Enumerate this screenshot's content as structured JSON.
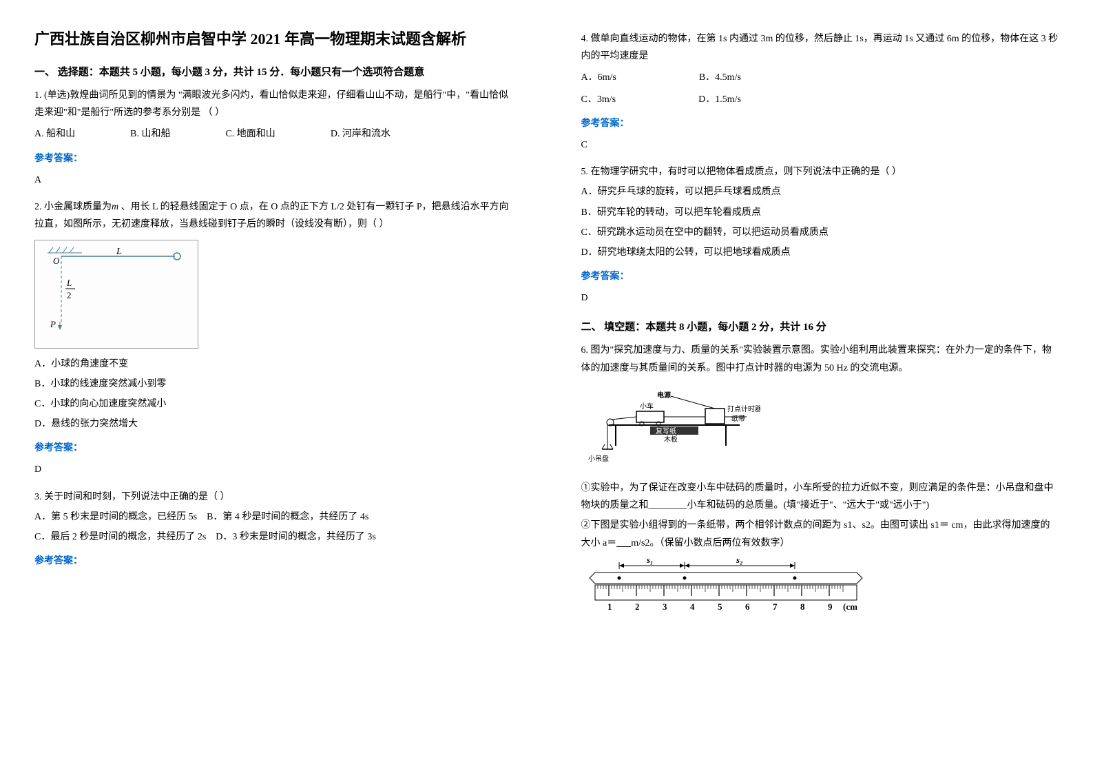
{
  "title": "广西壮族自治区柳州市启智中学 2021 年高一物理期末试题含解析",
  "section1_heading": "一、 选择题：本题共 5 小题，每小题 3 分，共计 15 分．每小题只有一个选项符合题意",
  "q1": {
    "stem": "1. (单选)敦煌曲词所见到的情景为 \"满眼波光多闪灼，看山恰似走来迎，仔细看山山不动，是船行\"中，\"看山恰似走来迎\"和\"是船行\"所选的参考系分别是 （           ）",
    "optA": "A.   船和山",
    "optB": "B. 山和船",
    "optC": "C. 地面和山",
    "optD": "D. 河岸和流水",
    "answer_label": "参考答案：",
    "answer": "A"
  },
  "q2": {
    "stem1": "2. 小金属球质量为",
    "stem2": " 、用长 L 的轻悬线固定于 O 点，在 O 点的正下方 L/2 处钉有一颗钉子 P，把悬线沿水平方向拉直，如图所示，无初速度释放，当悬线碰到钉子后的瞬时（设线没有断），则（  ）",
    "optA": "A．小球的角速度不变",
    "optB": "B．小球的线速度突然减小到零",
    "optC": "C．小球的向心加速度突然减小",
    "optD": "D．悬线的张力突然增大",
    "answer_label": "参考答案：",
    "answer": "D",
    "fig": {
      "L_label": "L",
      "Lhalf_label": "L/2",
      "O_label": "O",
      "P_label": "P",
      "line_color": "#4a7a9a",
      "border_color": "#999999"
    }
  },
  "q3": {
    "stem": "3. 关于时间和时刻，下列说法中正确的是（    ）",
    "optA": "A．第 5 秒末是时间的概念，已经历 5s",
    "optB": "B．第 4 秒是时间的概念，共经历了 4s",
    "optC": "C．最后 2 秒是时间的概念，共经历了 2s",
    "optD": "D．3 秒末是时间的概念，共经历了 3s",
    "answer_label": "参考答案："
  },
  "q4": {
    "stem": "4. 做单向直线运动的物体，在第 1s 内通过 3m 的位移，然后静止 1s，再运动 1s 又通过 6m 的位移，物体在这 3 秒内的平均速度是",
    "optA": "A．6m/s",
    "optB": "B．4.5m/s",
    "optC": "C．3m/s",
    "optD": "D．1.5m/s",
    "answer_label": "参考答案：",
    "answer": "C"
  },
  "q5": {
    "stem": "5. 在物理学研究中，有时可以把物体看成质点，则下列说法中正确的是（    ）",
    "optA": "A．研究乒乓球的旋转，可以把乒乓球看成质点",
    "optB": "B．研究车轮的转动，可以把车轮看成质点",
    "optC": "C．研究跳水运动员在空中的翻转，可以把运动员看成质点",
    "optD": "D．研究地球绕太阳的公转，可以把地球看成质点",
    "answer_label": "参考答案：",
    "answer": "D"
  },
  "section2_heading": "二、 填空题：本题共 8 小题，每小题 2 分，共计 16 分",
  "q6": {
    "stem": "6. 图为\"探究加速度与力、质量的关系\"实验装置示意图。实验小组利用此装置来探究：在外力一定的条件下，物体的加速度与其质量间的关系。图中打点计时器的电源为 50 Hz 的交流电源。",
    "sub1": "①实验中，为了保证在改变小车中砝码的质量时，小车所受的拉力近似不变，则应满足的条件是：小吊盘和盘中物块的质量之和________小车和砝码的总质量。(填\"接近于\"、\"远大于\"或\"远小于\")",
    "sub2_a": "②下图是实验小组得到的一条纸带，两个相邻计数点的间距为 s1、s2。由图可读出 s1＝        cm，由此求得加速度的大小 a＝",
    "sub2_b": "m/s2。（保留小数点后两位有效数字）",
    "fig": {
      "labels": {
        "dianyuan": "电源",
        "xiaoche": "小车",
        "dadian": "打点计时器",
        "zhidai": "纸带",
        "muban": "木板",
        "fuxieban": "复写纸",
        "xiaodiao": "小吊盘"
      },
      "line_color": "#000000"
    },
    "ruler": {
      "s1_label": "s₁",
      "s2_label": "s₂",
      "ticks": [
        "1",
        "2",
        "3",
        "4",
        "5",
        "6",
        "7",
        "8",
        "9"
      ],
      "unit": "(cm",
      "tick_color": "#000000"
    }
  }
}
